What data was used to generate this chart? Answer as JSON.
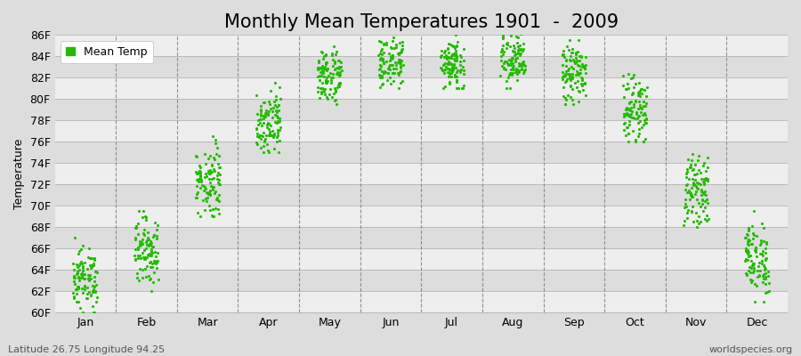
{
  "title": "Monthly Mean Temperatures 1901  -  2009",
  "ylabel": "Temperature",
  "bottom_left_text": "Latitude 26.75 Longitude 94.25",
  "bottom_right_text": "worldspecies.org",
  "legend_label": "Mean Temp",
  "dot_color": "#22BB00",
  "bg_color": "#DDDDDD",
  "band_color": "#EEEEEE",
  "ylim": [
    60,
    86
  ],
  "ytick_step": 2,
  "months": [
    "Jan",
    "Feb",
    "Mar",
    "Apr",
    "May",
    "Jun",
    "Jul",
    "Aug",
    "Sep",
    "Oct",
    "Nov",
    "Dec"
  ],
  "month_means": [
    63.2,
    65.8,
    72.3,
    78.0,
    82.2,
    83.5,
    83.4,
    83.6,
    82.4,
    79.0,
    71.5,
    65.0
  ],
  "month_stds": [
    1.4,
    1.6,
    1.7,
    1.5,
    1.3,
    1.2,
    1.3,
    1.3,
    1.4,
    1.5,
    1.5,
    1.7
  ],
  "month_mins": [
    60.0,
    62.0,
    69.0,
    75.0,
    79.5,
    81.0,
    81.0,
    81.0,
    79.5,
    76.0,
    68.0,
    61.0
  ],
  "month_maxs": [
    67.0,
    69.5,
    76.5,
    81.5,
    85.0,
    86.5,
    86.5,
    86.5,
    85.5,
    83.5,
    75.5,
    69.5
  ],
  "n_years": 109,
  "marker_size": 5,
  "title_fontsize": 15,
  "axis_fontsize": 9,
  "tick_fontsize": 9,
  "label_fontsize": 8
}
